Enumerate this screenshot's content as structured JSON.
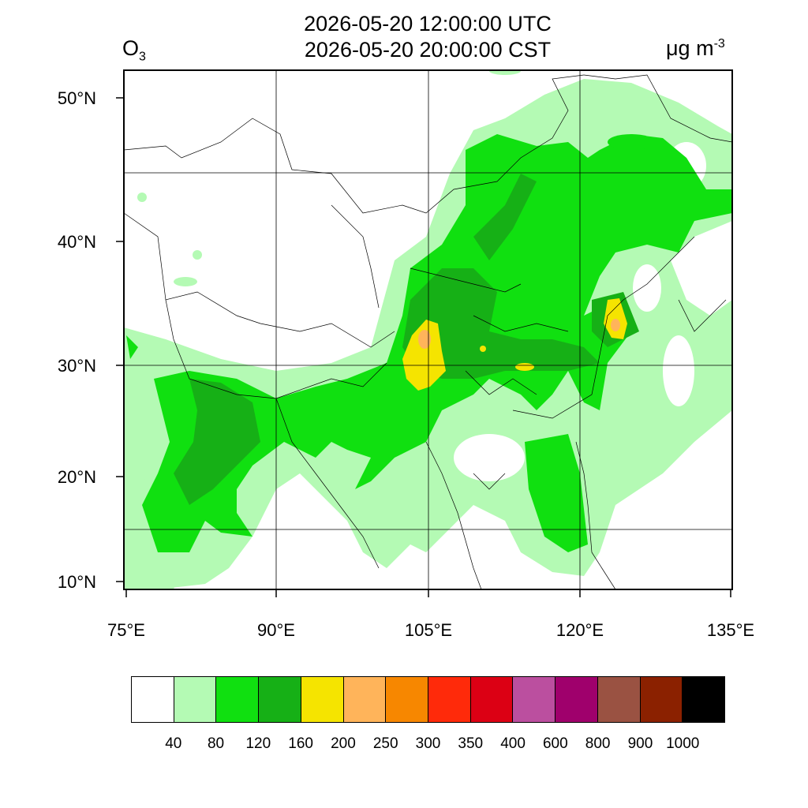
{
  "title": {
    "utc": "2026-05-20 12:00:00 UTC",
    "cst": "2026-05-20 20:00:00 CST"
  },
  "species": {
    "name": "O",
    "subscript": "3"
  },
  "units": {
    "base": "μg m",
    "exponent": "-3"
  },
  "lat_ticks": [
    "50°N",
    "40°N",
    "30°N",
    "20°N",
    "10°N"
  ],
  "lon_ticks": [
    "75°E",
    "90°E",
    "105°E",
    "120°E",
    "135°E"
  ],
  "colorbar": {
    "colors": [
      "#ffffff",
      "#b4fab4",
      "#10e010",
      "#16b016",
      "#f5e400",
      "#ffb45a",
      "#f78700",
      "#ff2a0a",
      "#dc0014",
      "#bb4f9f",
      "#9f006c",
      "#9a5242",
      "#8b2100",
      "#000000"
    ],
    "labels": [
      "40",
      "80",
      "120",
      "160",
      "200",
      "250",
      "300",
      "350",
      "400",
      "600",
      "800",
      "900",
      "1000"
    ]
  },
  "map_data": {
    "region": "China and surrounding Asia",
    "lon_range": [
      75,
      135
    ],
    "lat_range": [
      9,
      52
    ],
    "variable": "O3 surface concentration",
    "hotspots": [
      "Sichuan Basin (200-250)",
      "Yellow Sea east of Shanghai (200-250)",
      "Central China near Wuhan (200)"
    ]
  }
}
